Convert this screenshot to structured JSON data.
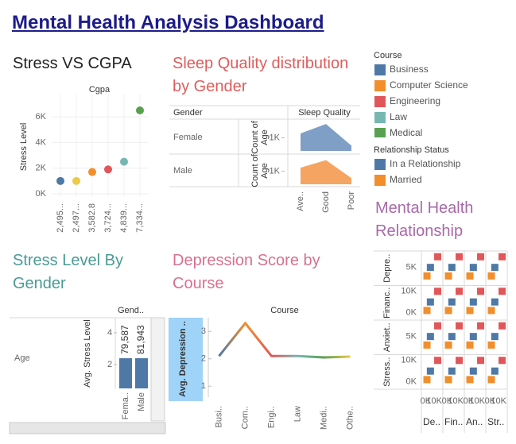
{
  "title": "Mental Health Analysis Dashboard",
  "chart_data": [
    {
      "type": "scatter",
      "title": "Stress VS CGPA",
      "x_label": "Cgpa",
      "y_label": "Stress Level",
      "categories": [
        "2,495...",
        "2,497...",
        "3,582.8",
        "3,724...",
        "4,839...",
        "7,334..."
      ],
      "values": [
        1000,
        1000,
        1700,
        1900,
        2500,
        6500
      ],
      "colors": [
        "#4e79a7",
        "#edc948",
        "#f28e2b",
        "#e15759",
        "#76b7b2",
        "#59a14f"
      ],
      "ylim": [
        0,
        7800
      ],
      "yticks": [
        {
          "value": 0,
          "label": "0K"
        },
        {
          "value": 2000,
          "label": "2K"
        },
        {
          "value": 4000,
          "label": "4K"
        },
        {
          "value": 6000,
          "label": "6K"
        }
      ],
      "grid": true
    },
    {
      "type": "area",
      "title": "Sleep Quality distribution by Gender",
      "row_header": "Gender",
      "x_label": "Sleep Quality",
      "y_label": "Count of Age",
      "categories": [
        "Ave..",
        "Good",
        "Poor"
      ],
      "series": [
        {
          "name": "Female",
          "color": "#7f9fc7",
          "values": [
            1330,
            2050,
            400
          ]
        },
        {
          "name": "Male",
          "color": "#f5a561",
          "values": [
            1260,
            1840,
            470
          ]
        }
      ],
      "ylim": [
        0,
        2300
      ],
      "yticks": [
        {
          "value": 1000,
          "label": "1K"
        }
      ]
    },
    {
      "type": "bar",
      "title": "Stress Level By Gender",
      "column_header": "Gend..",
      "row_label": "Age",
      "y_label": "Avg. Stress Level",
      "categories": [
        "Fema..",
        "Male"
      ],
      "values": [
        2.4,
        2.4
      ],
      "bar_labels": [
        "79,587",
        "81,943"
      ],
      "color": "#4e79a7",
      "ylim": [
        0.5,
        5
      ],
      "yticks": [
        2,
        4
      ]
    },
    {
      "type": "line",
      "title": "Depression Score by Course",
      "x_label": "Course",
      "y_label": "Avg. Depression ..",
      "categories": [
        "Busi..",
        "Com..",
        "Engi..",
        "Law",
        "Medi..",
        "Othe.."
      ],
      "values": [
        2.1,
        3.3,
        2.1,
        2.1,
        2.05,
        2.08
      ],
      "colors": [
        "#4e79a7",
        "#f28e2b",
        "#e15759",
        "#76b7b2",
        "#59a14f",
        "#edc948"
      ],
      "ylim": [
        0.6,
        3.5
      ],
      "yticks": [
        1,
        2,
        3
      ]
    },
    {
      "type": "scatter_matrix",
      "title": "Mental Health Relationship",
      "rows": [
        "Depre..",
        "Financ..",
        "Anxiet..",
        "Stress.."
      ],
      "columns": [
        "De..",
        "Fin..",
        "An..",
        "Str.."
      ],
      "series": [
        {
          "name": "In a Relationship",
          "color": "#4e79a7",
          "x": [
            5500,
            5500,
            5500,
            5500,
            5500,
            5500,
            5500,
            5500,
            5500,
            5500,
            5500,
            5500,
            5500,
            5500,
            5500,
            5500
          ],
          "y": [
            5000,
            5000,
            5000,
            5000,
            5000,
            5000,
            5000,
            5000,
            5000,
            5000,
            5000,
            5000,
            5000,
            5000,
            5000,
            5000
          ]
        },
        {
          "name": "Married",
          "color": "#f28e2b",
          "x": [
            1500,
            1500,
            1500,
            1500,
            1500,
            1500,
            1500,
            1500,
            1500,
            1500,
            1500,
            1500,
            1500,
            1500,
            1500,
            1500
          ],
          "y": [
            1000,
            1000,
            1000,
            1000,
            1000,
            1000,
            1000,
            1000,
            1000,
            1000,
            1000,
            1000,
            1000,
            1000,
            1000,
            1000
          ]
        },
        {
          "color": "#e15759",
          "x": [
            14000,
            14000,
            14000,
            14000,
            14000,
            14000,
            14000,
            14000,
            14000,
            14000,
            14000,
            14000,
            14000,
            14000,
            14000,
            14000
          ],
          "y": [
            10000,
            10000,
            10000,
            10000,
            10000,
            10000,
            10000,
            10000,
            10000,
            10000,
            10000,
            10000,
            10000,
            10000,
            10000,
            10000
          ]
        }
      ],
      "xlim": [
        -5000,
        20000
      ],
      "xticks": [
        {
          "value": 0,
          "label": "0K"
        },
        {
          "value": 10000,
          "label": "10K"
        }
      ],
      "ylim": [
        -3500,
        12700
      ],
      "yticks": [
        [
          {
            "value": 5000,
            "label": "5K"
          }
        ],
        [
          {
            "value": 10000,
            "label": "10K"
          },
          {
            "value": 0,
            "label": "0K"
          }
        ],
        [
          {
            "value": 5000,
            "label": "5K"
          }
        ],
        [
          {
            "value": 10000,
            "label": "10K"
          },
          {
            "value": 0,
            "label": "0K"
          }
        ]
      ]
    }
  ],
  "legend": {
    "course": {
      "title": "Course",
      "items": [
        {
          "name": "Business",
          "color": "#4e79a7"
        },
        {
          "name": "Computer Science",
          "color": "#f28e2b"
        },
        {
          "name": "Engineering",
          "color": "#e15759"
        },
        {
          "name": "Law",
          "color": "#76b7b2"
        },
        {
          "name": "Medical",
          "color": "#59a14f"
        }
      ]
    },
    "relationship": {
      "title": "Relationship Status",
      "items": [
        {
          "name": "In a Relationship",
          "color": "#4e79a7"
        },
        {
          "name": "Married",
          "color": "#f28e2b"
        }
      ]
    }
  }
}
